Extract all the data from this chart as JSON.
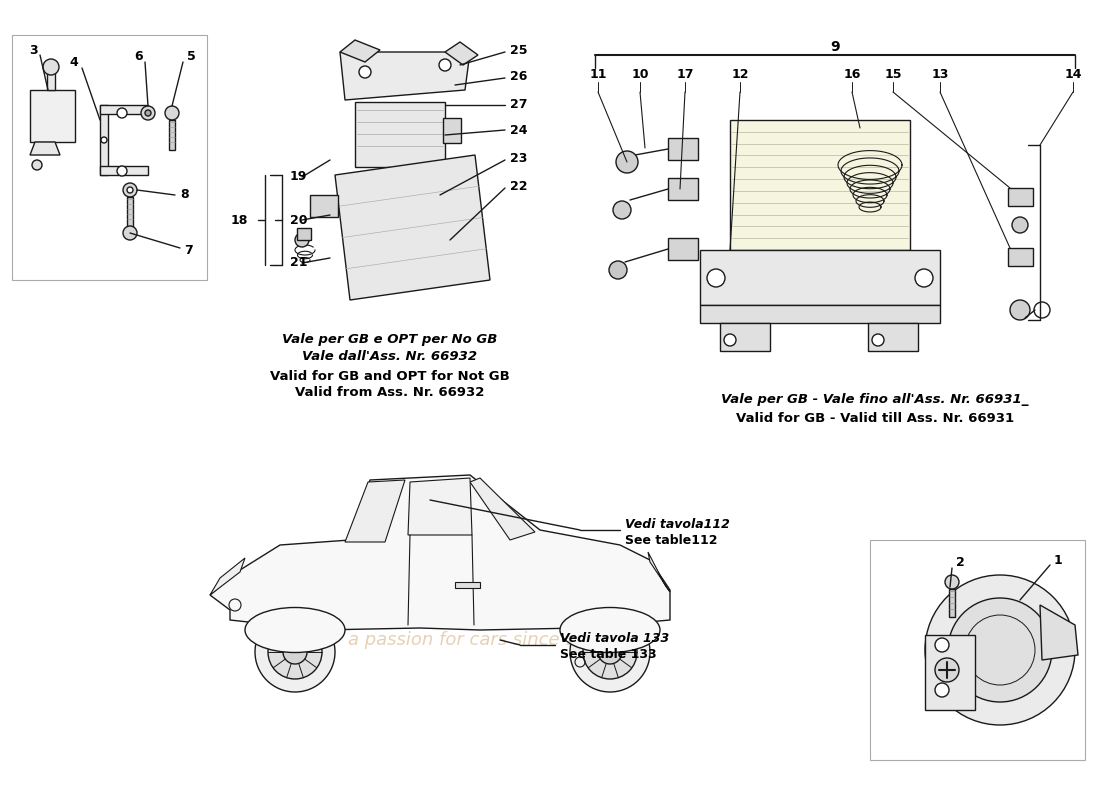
{
  "bg_color": "#ffffff",
  "line_color": "#1a1a1a",
  "label_color": "#000000",
  "note_color": "#111111",
  "parts_notes": {
    "center_note_line1": "Vale per GB e OPT per No GB",
    "center_note_line2": "Vale dall'Ass. Nr. 66932",
    "center_note_line3": "Valid for GB and OPT for Not GB",
    "center_note_line4": "Valid from Ass. Nr. 66932",
    "right_note_line1": "Vale per GB - Vale fino all'Ass. Nr. 66931_",
    "right_note_line2": "Valid for GB - Valid till Ass. Nr. 66931",
    "see_112_it": "Vedi tavola112",
    "see_112_en": "See table112",
    "see_133_it": "Vedi tavola 133",
    "see_133_en": "See table 133"
  }
}
